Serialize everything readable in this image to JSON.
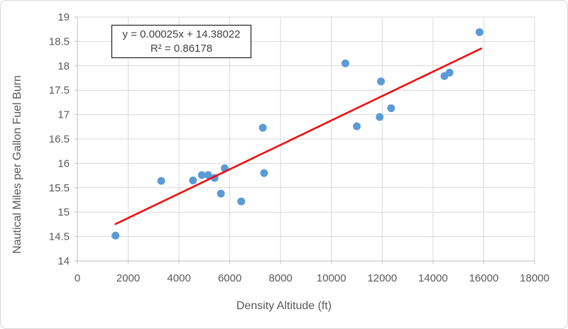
{
  "chart_data": {
    "type": "scatter",
    "title": "",
    "xlabel": "Density Altitude (ft)",
    "ylabel": "Nautical Miles per Gallon Fuel Burn",
    "xlim": [
      0,
      18000
    ],
    "ylim": [
      14,
      19
    ],
    "xtick_step": 2000,
    "ytick_step": 0.5,
    "grid": true,
    "legend": "none",
    "points": [
      [
        1500,
        14.52
      ],
      [
        3300,
        15.64
      ],
      [
        4550,
        15.65
      ],
      [
        4900,
        15.76
      ],
      [
        5150,
        15.76
      ],
      [
        5400,
        15.7
      ],
      [
        5650,
        15.38
      ],
      [
        5800,
        15.9
      ],
      [
        6450,
        15.22
      ],
      [
        7300,
        16.73
      ],
      [
        7350,
        15.8
      ],
      [
        10550,
        18.05
      ],
      [
        11000,
        16.76
      ],
      [
        11900,
        16.95
      ],
      [
        11950,
        17.68
      ],
      [
        12350,
        17.13
      ],
      [
        14450,
        17.79
      ],
      [
        14650,
        17.86
      ],
      [
        15830,
        18.69
      ]
    ],
    "trendline": {
      "slope": 0.00025,
      "intercept": 14.38022,
      "r2": 0.86178,
      "x_start": 1500,
      "x_end": 15900,
      "equation_label": "y = 0.00025x + 14.38022",
      "r2_label": "R² = 0.86178",
      "color": "#FF0000"
    },
    "colors": {
      "marker": "#5B9BD5",
      "gridline": "#D9D9D9",
      "axis_line": "#BFBFBF",
      "tick_label": "#595959",
      "axis_title": "#595959",
      "equation_text": "#404040"
    }
  }
}
